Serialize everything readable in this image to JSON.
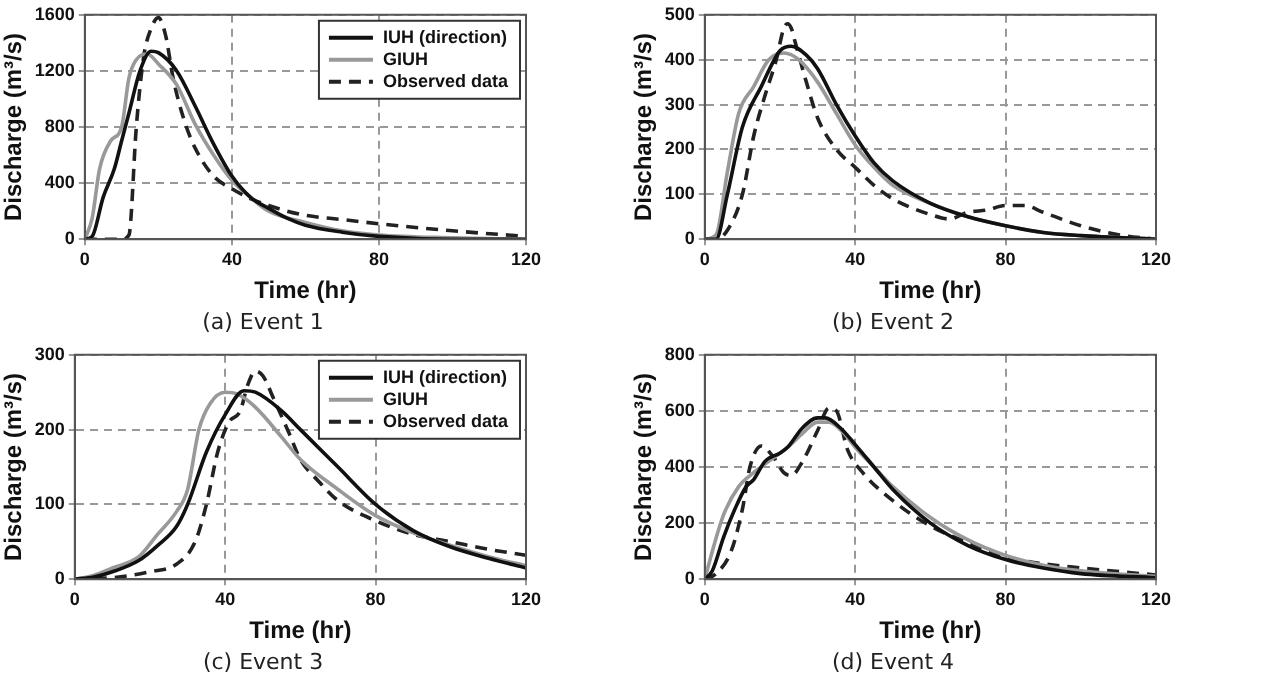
{
  "chart_data": [
    {
      "type": "line",
      "title": "(a) Event 1",
      "xlabel": "Time (hr)",
      "ylabel": "Discharge (m³/s)",
      "xlim": [
        0,
        120
      ],
      "xticks": [
        0,
        40,
        80,
        120
      ],
      "ylim": [
        0,
        1600
      ],
      "yticks": [
        0,
        400,
        800,
        1200,
        1600
      ],
      "grid": true,
      "legend": "top right",
      "marker": "none",
      "series": [
        {
          "name": "IUH (direction)",
          "color": "#111111",
          "line_style": "solid",
          "x": [
            0,
            2,
            5,
            8,
            10,
            12,
            15,
            18,
            20,
            25,
            30,
            35,
            40,
            45,
            50,
            55,
            60,
            70,
            80,
            100,
            120
          ],
          "values": [
            0,
            20,
            300,
            500,
            700,
            900,
            1200,
            1340,
            1330,
            1200,
            950,
            680,
            450,
            300,
            220,
            150,
            100,
            50,
            20,
            0,
            0
          ]
        },
        {
          "name": "GIUH",
          "color": "#999999",
          "line_style": "solid",
          "x": [
            0,
            2,
            4,
            7,
            10,
            12,
            14,
            17,
            20,
            25,
            30,
            35,
            40,
            45,
            50,
            60,
            70,
            80,
            100,
            120
          ],
          "values": [
            0,
            150,
            500,
            700,
            800,
            1150,
            1280,
            1320,
            1250,
            1100,
            820,
            600,
            420,
            300,
            200,
            120,
            60,
            30,
            10,
            0
          ]
        },
        {
          "name": "Observed data",
          "color": "#222222",
          "line_style": "dashed",
          "x": [
            0,
            10,
            12,
            14,
            16,
            18,
            20,
            22,
            24,
            27,
            30,
            35,
            40,
            45,
            50,
            55,
            60,
            70,
            80,
            100,
            120
          ],
          "values": [
            0,
            0,
            30,
            800,
            1300,
            1500,
            1580,
            1450,
            1150,
            850,
            650,
            450,
            360,
            290,
            240,
            200,
            170,
            140,
            110,
            60,
            20
          ]
        }
      ]
    },
    {
      "type": "line",
      "title": "(b) Event 2",
      "xlabel": "Time (hr)",
      "ylabel": "Discharge (m³/s)",
      "xlim": [
        0,
        120
      ],
      "xticks": [
        0,
        40,
        80,
        120
      ],
      "ylim": [
        0,
        500
      ],
      "yticks": [
        0,
        100,
        200,
        300,
        400,
        500
      ],
      "grid": true,
      "marker": "none",
      "series": [
        {
          "color": "#111111",
          "line_style": "solid",
          "x": [
            0,
            3,
            6,
            10,
            15,
            20,
            23,
            27,
            30,
            35,
            40,
            45,
            50,
            60,
            70,
            80,
            90,
            100,
            120
          ],
          "values": [
            0,
            0,
            100,
            250,
            340,
            420,
            430,
            410,
            380,
            300,
            230,
            170,
            130,
            80,
            50,
            30,
            15,
            8,
            0
          ]
        },
        {
          "color": "#999999",
          "line_style": "solid",
          "x": [
            0,
            3,
            6,
            9,
            13,
            17,
            21,
            25,
            30,
            35,
            40,
            45,
            50,
            60,
            70,
            80,
            90,
            120
          ],
          "values": [
            0,
            10,
            150,
            280,
            340,
            400,
            415,
            400,
            350,
            280,
            210,
            160,
            120,
            80,
            50,
            30,
            15,
            0
          ]
        },
        {
          "color": "#222222",
          "line_style": "dashed",
          "x": [
            0,
            3,
            6,
            10,
            13,
            16,
            19,
            21,
            22,
            23,
            24,
            27,
            30,
            35,
            40,
            45,
            50,
            55,
            60,
            65,
            70,
            75,
            80,
            85,
            90,
            100,
            110,
            120
          ],
          "values": [
            0,
            0,
            20,
            100,
            230,
            320,
            400,
            470,
            480,
            470,
            440,
            350,
            270,
            200,
            160,
            120,
            90,
            70,
            55,
            45,
            60,
            65,
            75,
            75,
            60,
            30,
            10,
            0
          ]
        }
      ]
    },
    {
      "type": "line",
      "title": "(c) Event 3",
      "xlabel": "Time (hr)",
      "ylabel": "Discharge (m³/s)",
      "xlim": [
        0,
        120
      ],
      "xticks": [
        0,
        40,
        80,
        120
      ],
      "ylim": [
        0,
        300
      ],
      "yticks": [
        0,
        100,
        200,
        300
      ],
      "grid": true,
      "legend": "top right",
      "marker": "none",
      "series": [
        {
          "name": "IUH (direction)",
          "color": "#111111",
          "line_style": "solid",
          "x": [
            0,
            5,
            10,
            17,
            22,
            27,
            30,
            35,
            40,
            45,
            48,
            55,
            60,
            70,
            80,
            90,
            100,
            110,
            120
          ],
          "values": [
            0,
            3,
            10,
            25,
            45,
            70,
            100,
            170,
            220,
            252,
            250,
            225,
            200,
            150,
            100,
            65,
            43,
            28,
            15
          ]
        },
        {
          "name": "GIUH",
          "color": "#999999",
          "line_style": "solid",
          "x": [
            0,
            5,
            10,
            17,
            22,
            27,
            30,
            33,
            36,
            40,
            43,
            48,
            55,
            60,
            70,
            80,
            90,
            100,
            110,
            120
          ],
          "values": [
            0,
            5,
            15,
            30,
            60,
            90,
            120,
            200,
            235,
            250,
            248,
            230,
            190,
            160,
            120,
            85,
            62,
            45,
            30,
            18
          ]
        },
        {
          "name": "Observed data",
          "color": "#222222",
          "line_style": "dashed",
          "x": [
            0,
            10,
            20,
            27,
            32,
            35,
            38,
            41,
            44,
            46,
            48,
            50,
            53,
            57,
            60,
            65,
            70,
            80,
            90,
            100,
            110,
            120
          ],
          "values": [
            0,
            2,
            10,
            20,
            50,
            100,
            170,
            210,
            225,
            260,
            278,
            272,
            240,
            195,
            160,
            130,
            105,
            78,
            60,
            50,
            40,
            32
          ]
        }
      ]
    },
    {
      "type": "line",
      "title": "(d) Event 4",
      "xlabel": "Time (hr)",
      "ylabel": "Discharge (m³/s)",
      "xlim": [
        0,
        120
      ],
      "xticks": [
        0,
        40,
        80,
        120
      ],
      "ylim": [
        0,
        800
      ],
      "yticks": [
        0,
        200,
        400,
        600,
        800
      ],
      "grid": true,
      "marker": "none",
      "series": [
        {
          "color": "#111111",
          "line_style": "solid",
          "x": [
            0,
            2,
            5,
            8,
            11,
            13,
            16,
            20,
            22,
            26,
            30,
            32,
            36,
            40,
            45,
            50,
            60,
            70,
            80,
            90,
            100,
            120
          ],
          "values": [
            0,
            30,
            150,
            250,
            330,
            355,
            420,
            450,
            470,
            540,
            575,
            575,
            540,
            480,
            400,
            320,
            200,
            120,
            70,
            40,
            20,
            5
          ]
        },
        {
          "color": "#999999",
          "line_style": "solid",
          "x": [
            0,
            2,
            5,
            9,
            13,
            17,
            22,
            26,
            30,
            33,
            37,
            40,
            45,
            50,
            60,
            70,
            80,
            90,
            100,
            120
          ],
          "values": [
            0,
            100,
            230,
            330,
            380,
            420,
            470,
            520,
            560,
            560,
            520,
            470,
            400,
            330,
            220,
            140,
            85,
            50,
            30,
            10
          ]
        },
        {
          "color": "#222222",
          "line_style": "dashed",
          "x": [
            0,
            3,
            7,
            10,
            12,
            15,
            18,
            21,
            23,
            26,
            30,
            33,
            35,
            38,
            42,
            50,
            60,
            70,
            80,
            90,
            100,
            120
          ],
          "values": [
            0,
            20,
            100,
            250,
            400,
            475,
            440,
            380,
            370,
            420,
            530,
            610,
            600,
            460,
            380,
            280,
            190,
            130,
            80,
            55,
            40,
            15
          ]
        }
      ]
    }
  ]
}
